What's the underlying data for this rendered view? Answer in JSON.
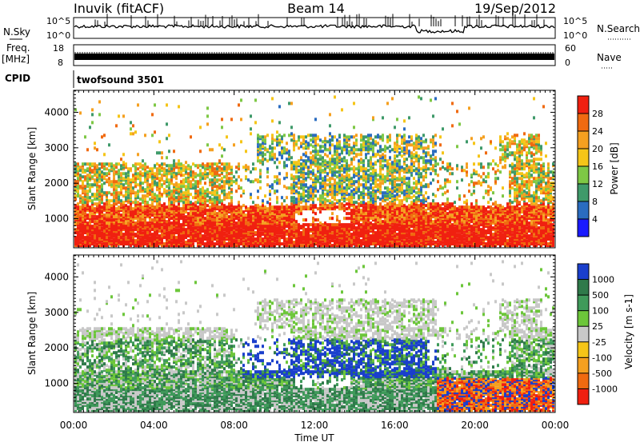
{
  "header": {
    "station": "Inuvik (fitACF)",
    "beam": "Beam 14",
    "date": "19/Sep/2012"
  },
  "top_panels": {
    "nsky_label": "N.Sky",
    "nsky_ticks": [
      "10^5",
      "10^0"
    ],
    "nsearch_label": "N.Search",
    "nsearch_ticks": [
      "10^5",
      "10^0"
    ],
    "freq_label": "Freq.",
    "freq_unit": "[MHz]",
    "freq_ticks": [
      "18",
      "8"
    ],
    "nave_label": "Nave",
    "nave_ticks": [
      "60",
      "0"
    ],
    "cpid_label": "CPID",
    "cpid_text": "twofsound 3501"
  },
  "chart_data": [
    {
      "type": "heatmap",
      "name": "power",
      "ylabel": "Slant Range [km]",
      "yticks": [
        "1000",
        "2000",
        "3000",
        "4000"
      ],
      "ylim": [
        180,
        4620
      ],
      "colorbar_label": "Power [dB]",
      "colorbar_ticks": [
        "4",
        "8",
        "12",
        "16",
        "20",
        "24",
        "28"
      ],
      "colorbar_colors": [
        "#1a1aff",
        "#2a6cc0",
        "#3f9a6a",
        "#7ec845",
        "#f5c518",
        "#f5a020",
        "#f06a10",
        "#f02010"
      ],
      "grid": false
    },
    {
      "type": "heatmap",
      "name": "velocity",
      "ylabel": "Slant Range [km]",
      "yticks": [
        "1000",
        "2000",
        "3000",
        "4000"
      ],
      "ylim": [
        180,
        4620
      ],
      "xlabel": "Time UT",
      "xticks": [
        "00:00",
        "04:00",
        "08:00",
        "12:00",
        "16:00",
        "20:00",
        "00:00"
      ],
      "colorbar_label": "Velocity [m s-1]",
      "colorbar_ticks": [
        "1000",
        "500",
        "100",
        "25",
        "-25",
        "-100",
        "-500",
        "-1000"
      ],
      "colorbar_colors": [
        "#1a3fcc",
        "#2f7a4a",
        "#3f9a5a",
        "#6cc63a",
        "#c8c8c8",
        "#f5c518",
        "#f5a020",
        "#f06a10",
        "#f02010"
      ],
      "grid": false
    }
  ]
}
